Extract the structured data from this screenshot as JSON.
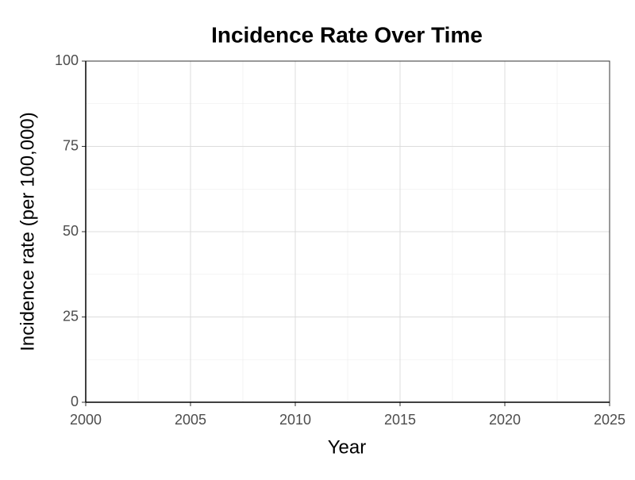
{
  "chart_data": {
    "type": "line",
    "title": "Incidence Rate Over Time",
    "x_label": "Year",
    "y_label": "Incidence rate (per 100,000)",
    "series": [],
    "xlim": [
      2000,
      2025
    ],
    "xticks": [
      2000,
      2005,
      2010,
      2015,
      2020,
      2025
    ],
    "ylim": [
      0,
      100
    ],
    "yticks": [
      0,
      25,
      50,
      75,
      100
    ],
    "grid": true
  }
}
